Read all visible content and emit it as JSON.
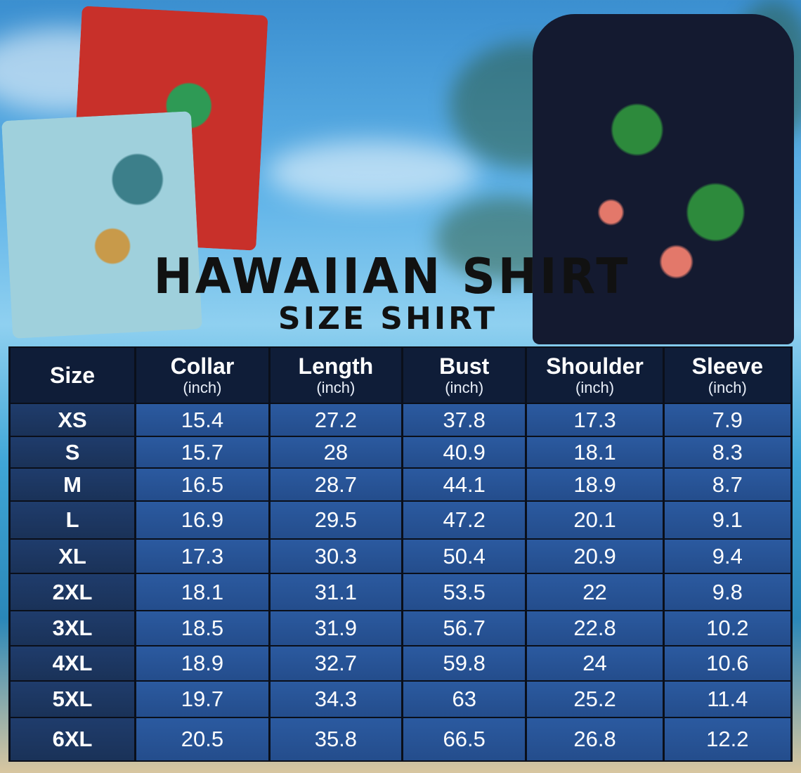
{
  "title": "HAWAIIAN SHIRT",
  "subtitle": "SIZE SHIRT",
  "table": {
    "headers": [
      {
        "label": "Size",
        "unit": ""
      },
      {
        "label": "Collar",
        "unit": "(inch)"
      },
      {
        "label": "Length",
        "unit": "(inch)"
      },
      {
        "label": "Bust",
        "unit": "(inch)"
      },
      {
        "label": "Shoulder",
        "unit": "(inch)"
      },
      {
        "label": "Sleeve",
        "unit": "(inch)"
      }
    ],
    "rows": [
      [
        "XS",
        "15.4",
        "27.2",
        "37.8",
        "17.3",
        "7.9"
      ],
      [
        "S",
        "15.7",
        "28",
        "40.9",
        "18.1",
        "8.3"
      ],
      [
        "M",
        "16.5",
        "28.7",
        "44.1",
        "18.9",
        "8.7"
      ],
      [
        "L",
        "16.9",
        "29.5",
        "47.2",
        "20.1",
        "9.1"
      ],
      [
        "XL",
        "17.3",
        "30.3",
        "50.4",
        "20.9",
        "9.4"
      ],
      [
        "2XL",
        "18.1",
        "31.1",
        "53.5",
        "22",
        "9.8"
      ],
      [
        "3XL",
        "18.5",
        "31.9",
        "56.7",
        "22.8",
        "10.2"
      ],
      [
        "4XL",
        "18.9",
        "32.7",
        "59.8",
        "24",
        "10.6"
      ],
      [
        "5XL",
        "19.7",
        "34.3",
        "63",
        "25.2",
        "11.4"
      ],
      [
        "6XL",
        "20.5",
        "35.8",
        "66.5",
        "26.8",
        "12.2"
      ]
    ]
  },
  "colors": {
    "header": "#0f1d38",
    "cell": "#2b5aa0",
    "size_cell": "#1f3c6c"
  }
}
